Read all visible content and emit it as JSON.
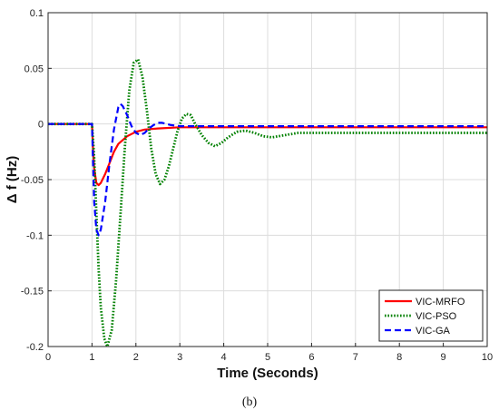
{
  "chart_data": {
    "type": "line",
    "xlabel": "Time (Seconds)",
    "ylabel": "Δ f (Hz)",
    "xlim": [
      0,
      10
    ],
    "ylim": [
      -0.2,
      0.1
    ],
    "xticks": [
      0,
      1,
      2,
      3,
      4,
      5,
      6,
      7,
      8,
      9,
      10
    ],
    "yticks": [
      -0.2,
      -0.15,
      -0.1,
      -0.05,
      0,
      0.05,
      0.1
    ],
    "xtick_labels": [
      "0",
      "1",
      "2",
      "3",
      "4",
      "5",
      "6",
      "7",
      "8",
      "9",
      "10"
    ],
    "ytick_labels": [
      "-0.2",
      "-0.15",
      "-0.1",
      "-0.05",
      "0",
      "0.05",
      "0.1"
    ],
    "grid": true,
    "legend_position": "bottom-right",
    "series": [
      {
        "name": "VIC-MRFO",
        "color": "#ff0000",
        "style": "solid",
        "x": [
          0,
          1.0,
          1.02,
          1.05,
          1.1,
          1.15,
          1.2,
          1.3,
          1.4,
          1.5,
          1.6,
          1.8,
          2.0,
          2.2,
          2.5,
          3.0,
          4.0,
          5.0,
          6.0,
          8.0,
          10.0
        ],
        "y": [
          0,
          0,
          -0.02,
          -0.04,
          -0.053,
          -0.055,
          -0.053,
          -0.045,
          -0.035,
          -0.025,
          -0.018,
          -0.011,
          -0.007,
          -0.005,
          -0.004,
          -0.003,
          -0.003,
          -0.003,
          -0.003,
          -0.003,
          -0.003
        ]
      },
      {
        "name": "VIC-PSO",
        "color": "#008000",
        "style": "dotted",
        "x": [
          0,
          1.0,
          1.05,
          1.1,
          1.15,
          1.2,
          1.28,
          1.35,
          1.45,
          1.55,
          1.65,
          1.75,
          1.85,
          1.95,
          2.05,
          2.15,
          2.25,
          2.35,
          2.45,
          2.55,
          2.65,
          2.75,
          2.85,
          2.95,
          3.05,
          3.15,
          3.25,
          3.35,
          3.5,
          3.65,
          3.8,
          3.95,
          4.1,
          4.3,
          4.5,
          4.7,
          4.9,
          5.1,
          5.4,
          5.7,
          6.0,
          6.5,
          7.0,
          8.0,
          9.0,
          10.0
        ],
        "y": [
          0,
          0,
          -0.03,
          -0.08,
          -0.13,
          -0.165,
          -0.193,
          -0.2,
          -0.185,
          -0.14,
          -0.08,
          -0.02,
          0.03,
          0.055,
          0.058,
          0.042,
          0.012,
          -0.022,
          -0.045,
          -0.054,
          -0.05,
          -0.038,
          -0.022,
          -0.006,
          0.005,
          0.009,
          0.008,
          0.0,
          -0.01,
          -0.017,
          -0.02,
          -0.017,
          -0.012,
          -0.007,
          -0.006,
          -0.008,
          -0.011,
          -0.012,
          -0.01,
          -0.008,
          -0.008,
          -0.008,
          -0.008,
          -0.008,
          -0.008,
          -0.008
        ]
      },
      {
        "name": "VIC-GA",
        "color": "#0000ff",
        "style": "dashed",
        "x": [
          0,
          1.0,
          1.02,
          1.05,
          1.1,
          1.15,
          1.2,
          1.3,
          1.4,
          1.5,
          1.6,
          1.65,
          1.7,
          1.8,
          1.9,
          2.0,
          2.1,
          2.2,
          2.3,
          2.4,
          2.5,
          2.6,
          2.7,
          2.8,
          3.0,
          3.5,
          4.0,
          5.0,
          6.0,
          8.0,
          10.0
        ],
        "y": [
          0,
          0,
          -0.03,
          -0.07,
          -0.095,
          -0.1,
          -0.095,
          -0.07,
          -0.035,
          -0.005,
          0.015,
          0.018,
          0.016,
          0.008,
          -0.002,
          -0.008,
          -0.01,
          -0.008,
          -0.004,
          -0.001,
          0.001,
          0.001,
          0.0,
          -0.001,
          -0.002,
          -0.002,
          -0.002,
          -0.002,
          -0.002,
          -0.002,
          -0.002
        ]
      }
    ]
  },
  "caption": "(b)"
}
